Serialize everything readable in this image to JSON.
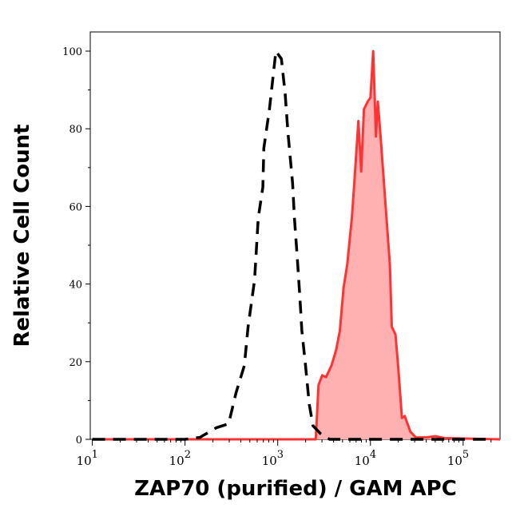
{
  "chart_data": {
    "type": "area",
    "title": "",
    "xlabel": "ZAP70 (purified) / GAM APC",
    "ylabel": "Relative Cell Count",
    "xscale": "log",
    "xlim": [
      9.5,
      250000
    ],
    "ylim": [
      0,
      105
    ],
    "x_ticks": [
      {
        "base": "10",
        "exp": "1",
        "value": 10
      },
      {
        "base": "10",
        "exp": "2",
        "value": 100
      },
      {
        "base": "10",
        "exp": "3",
        "value": 1000
      },
      {
        "base": "10",
        "exp": "4",
        "value": 10000
      },
      {
        "base": "10",
        "exp": "5",
        "value": 100000
      }
    ],
    "y_ticks": [
      "0",
      "20",
      "40",
      "60",
      "80",
      "100"
    ],
    "grid": false,
    "legend": "none",
    "series": [
      {
        "style": "dashed-line",
        "color": "#000000",
        "x_log10": [
          1.0,
          2.0,
          2.16,
          2.34,
          2.47,
          2.55,
          2.64,
          2.68,
          2.75,
          2.77,
          2.79,
          2.84,
          2.85,
          2.91,
          2.98,
          3.04,
          3.08,
          3.11,
          3.16,
          3.18,
          3.21,
          3.24,
          3.26,
          3.3,
          3.34,
          3.38,
          3.46,
          3.56,
          5.3
        ],
        "values": [
          0,
          0,
          0.5,
          3,
          4,
          12,
          19,
          29,
          41,
          49,
          57,
          65,
          75,
          85,
          100,
          98,
          89,
          79,
          66,
          57,
          47,
          36,
          28,
          19,
          9,
          3.5,
          1.5,
          0,
          0
        ]
      },
      {
        "style": "filled",
        "color": "#ff3333",
        "fill": "#ffb0b0",
        "x_log10": [
          1.0,
          3.41,
          3.44,
          3.48,
          3.52,
          3.58,
          3.63,
          3.67,
          3.71,
          3.75,
          3.8,
          3.82,
          3.87,
          3.9,
          3.93,
          3.97,
          4.0,
          4.03,
          4.06,
          4.08,
          4.11,
          4.14,
          4.21,
          4.23,
          4.27,
          4.3,
          4.34,
          4.37,
          4.43,
          4.49,
          4.6,
          4.7,
          4.8,
          5.4
        ],
        "values": [
          0,
          0,
          14,
          16.5,
          16,
          19,
          23,
          28,
          39,
          45,
          57,
          64,
          82,
          69,
          85,
          87,
          88,
          100,
          78,
          87,
          78,
          68,
          45,
          29,
          27,
          18.5,
          5.5,
          6,
          2,
          0.5,
          0.5,
          0.8,
          0.3,
          0
        ]
      }
    ]
  }
}
